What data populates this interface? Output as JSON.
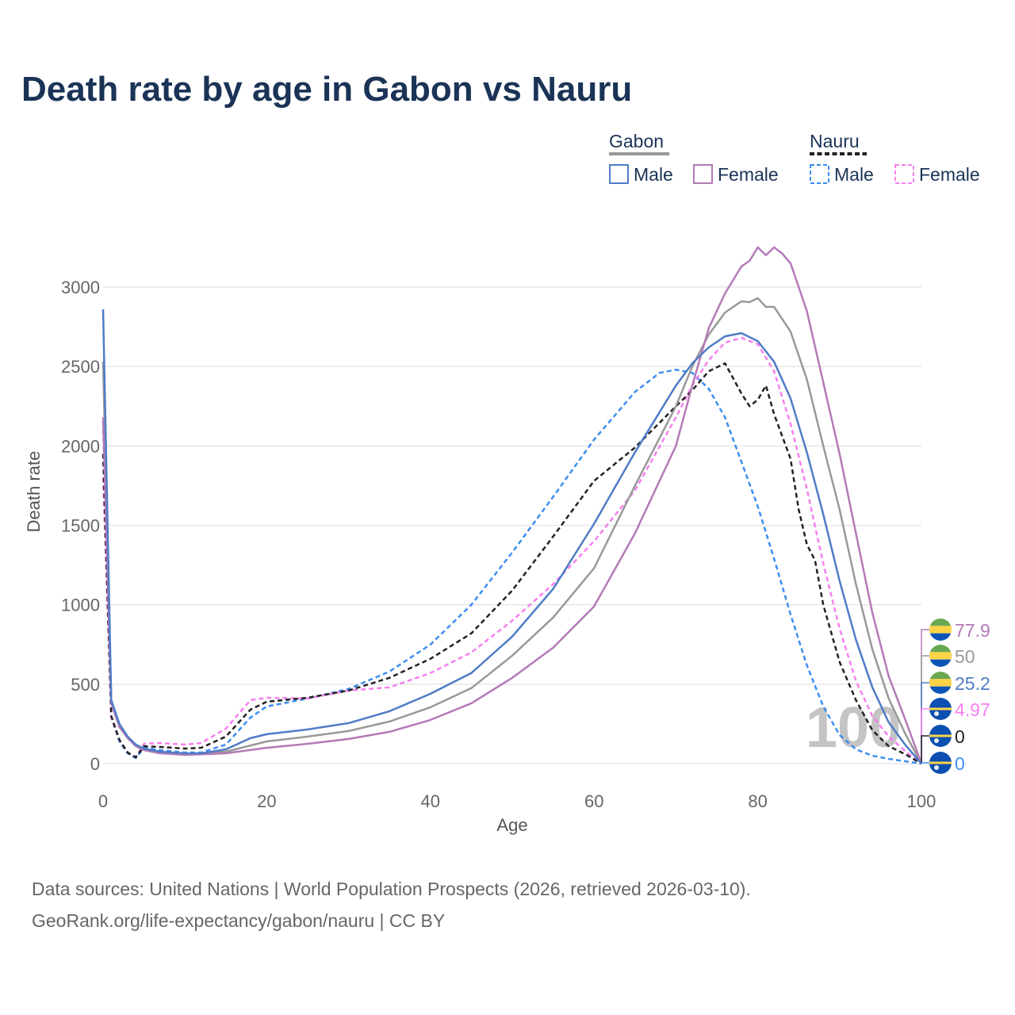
{
  "title": "Death rate by age in Gabon vs Nauru",
  "legend": {
    "groups": [
      {
        "name": "Gabon",
        "underline_color": "#999999",
        "dashed": false,
        "items": [
          {
            "label": "Male",
            "color": "#4f7cc6"
          },
          {
            "label": "Female",
            "color": "#b47ab8"
          }
        ]
      },
      {
        "name": "Nauru",
        "underline_color": "#222222",
        "dashed": true,
        "items": [
          {
            "label": "Male",
            "color": "#3d8ef0"
          },
          {
            "label": "Female",
            "color": "#f77ff0"
          }
        ]
      }
    ]
  },
  "watermark": "100",
  "end_labels": [
    {
      "value": "77.9",
      "color": "#b47ab8",
      "flag": "gabon"
    },
    {
      "value": "50",
      "color": "#999999",
      "flag": "gabon"
    },
    {
      "value": "25.2",
      "color": "#4f7cc6",
      "flag": "gabon"
    },
    {
      "value": "4.97",
      "color": "#f77ff0",
      "flag": "nauru"
    },
    {
      "value": "0",
      "color": "#222222",
      "flag": "nauru"
    },
    {
      "value": "0",
      "color": "#3d8ef0",
      "flag": "nauru"
    }
  ],
  "sources": {
    "line1": "Data sources: United Nations | World Population Prospects (2026, retrieved 2026-03-10).",
    "line2": "GeoRank.org/life-expectancy/gabon/nauru | CC BY"
  },
  "chart_data": {
    "type": "line",
    "title": "Death rate by age in Gabon vs Nauru",
    "xlabel": "Age",
    "ylabel": "Death rate",
    "xlim": [
      0,
      100
    ],
    "ylim": [
      0,
      3000
    ],
    "xticks": [
      "0",
      "20",
      "40",
      "60",
      "80",
      "100"
    ],
    "yticks": [
      "0",
      "500",
      "1000",
      "1500",
      "2000",
      "2500",
      "3000"
    ],
    "grid": true,
    "legend_position": "top-right",
    "series": [
      {
        "name": "Nauru Male",
        "color": "#3d8ef0",
        "dashed": true,
        "x": [
          0,
          1,
          2,
          3,
          4,
          5,
          7,
          10,
          12,
          15,
          18,
          20,
          25,
          30,
          35,
          40,
          45,
          50,
          55,
          60,
          65,
          68,
          70,
          72,
          74,
          76,
          78,
          80,
          82,
          84,
          86,
          88,
          90,
          92,
          94,
          96,
          98,
          100
        ],
        "y": [
          2150,
          290,
          140,
          65,
          35,
          100,
          85,
          70,
          70,
          120,
          290,
          360,
          410,
          470,
          580,
          750,
          1000,
          1330,
          1680,
          2040,
          2340,
          2460,
          2480,
          2460,
          2360,
          2180,
          1900,
          1620,
          1290,
          940,
          620,
          360,
          180,
          90,
          50,
          30,
          15,
          0
        ]
      },
      {
        "name": "Nauru Female",
        "color": "#f77ff0",
        "dashed": true,
        "x": [
          0,
          1,
          2,
          3,
          4,
          5,
          7,
          10,
          12,
          15,
          18,
          20,
          25,
          30,
          35,
          40,
          45,
          50,
          55,
          60,
          65,
          70,
          72,
          74,
          76,
          78,
          80,
          82,
          84,
          86,
          88,
          90,
          92,
          94,
          96,
          98,
          100
        ],
        "y": [
          1800,
          290,
          150,
          70,
          40,
          125,
          130,
          120,
          130,
          220,
          400,
          415,
          410,
          460,
          480,
          570,
          700,
          900,
          1130,
          1400,
          1720,
          2180,
          2380,
          2540,
          2650,
          2680,
          2640,
          2470,
          2140,
          1730,
          1260,
          850,
          520,
          300,
          170,
          80,
          0
        ]
      },
      {
        "name": "Nauru",
        "color": "#222222",
        "dashed": true,
        "x": [
          0,
          1,
          2,
          3,
          4,
          5,
          7,
          10,
          12,
          15,
          18,
          20,
          25,
          30,
          35,
          40,
          45,
          50,
          55,
          60,
          65,
          70,
          72,
          74,
          76,
          78,
          79,
          80,
          81,
          82,
          84,
          85,
          86,
          87,
          88,
          90,
          92,
          94,
          96,
          98,
          100
        ],
        "y": [
          1950,
          300,
          150,
          70,
          40,
          110,
          105,
          95,
          100,
          170,
          340,
          390,
          415,
          460,
          540,
          660,
          820,
          1090,
          1430,
          1780,
          1990,
          2250,
          2350,
          2470,
          2520,
          2330,
          2250,
          2290,
          2380,
          2200,
          1920,
          1600,
          1380,
          1280,
          1000,
          640,
          400,
          210,
          110,
          60,
          0
        ]
      },
      {
        "name": "Gabon",
        "color": "#999999",
        "dashed": false,
        "x": [
          0,
          1,
          2,
          3,
          4,
          5,
          7,
          10,
          15,
          20,
          25,
          30,
          35,
          40,
          45,
          50,
          55,
          60,
          65,
          70,
          72,
          74,
          76,
          78,
          79,
          80,
          81,
          82,
          84,
          86,
          88,
          90,
          92,
          94,
          96,
          98,
          100
        ],
        "y": [
          2530,
          390,
          240,
          165,
          115,
          90,
          70,
          60,
          75,
          140,
          170,
          205,
          265,
          355,
          475,
          680,
          920,
          1230,
          1750,
          2250,
          2500,
          2700,
          2840,
          2910,
          2905,
          2930,
          2875,
          2875,
          2720,
          2420,
          2000,
          1600,
          1130,
          720,
          410,
          190,
          0
        ]
      },
      {
        "name": "Gabon Female",
        "color": "#b47ab8",
        "dashed": false,
        "x": [
          0,
          1,
          2,
          3,
          4,
          5,
          7,
          10,
          15,
          20,
          25,
          30,
          35,
          40,
          45,
          50,
          55,
          60,
          65,
          70,
          72,
          74,
          76,
          78,
          79,
          80,
          81,
          82,
          83,
          84,
          86,
          88,
          90,
          92,
          94,
          96,
          98,
          100
        ],
        "y": [
          2180,
          380,
          230,
          160,
          110,
          85,
          65,
          55,
          65,
          100,
          125,
          155,
          200,
          275,
          380,
          540,
          730,
          990,
          1450,
          2000,
          2380,
          2740,
          2960,
          3130,
          3165,
          3250,
          3200,
          3250,
          3210,
          3150,
          2850,
          2400,
          1950,
          1450,
          950,
          550,
          280,
          0
        ]
      },
      {
        "name": "Gabon Male",
        "color": "#4f7cc6",
        "dashed": false,
        "x": [
          0,
          1,
          2,
          3,
          4,
          5,
          7,
          10,
          12,
          15,
          18,
          20,
          25,
          30,
          35,
          40,
          45,
          50,
          55,
          60,
          65,
          70,
          72,
          74,
          76,
          78,
          80,
          82,
          84,
          86,
          88,
          90,
          92,
          94,
          96,
          98,
          100
        ],
        "y": [
          2860,
          400,
          250,
          170,
          120,
          95,
          75,
          65,
          65,
          90,
          160,
          185,
          215,
          255,
          330,
          440,
          570,
          800,
          1100,
          1510,
          1960,
          2380,
          2520,
          2620,
          2690,
          2710,
          2660,
          2530,
          2300,
          1960,
          1570,
          1150,
          780,
          480,
          260,
          120,
          0
        ]
      }
    ]
  }
}
